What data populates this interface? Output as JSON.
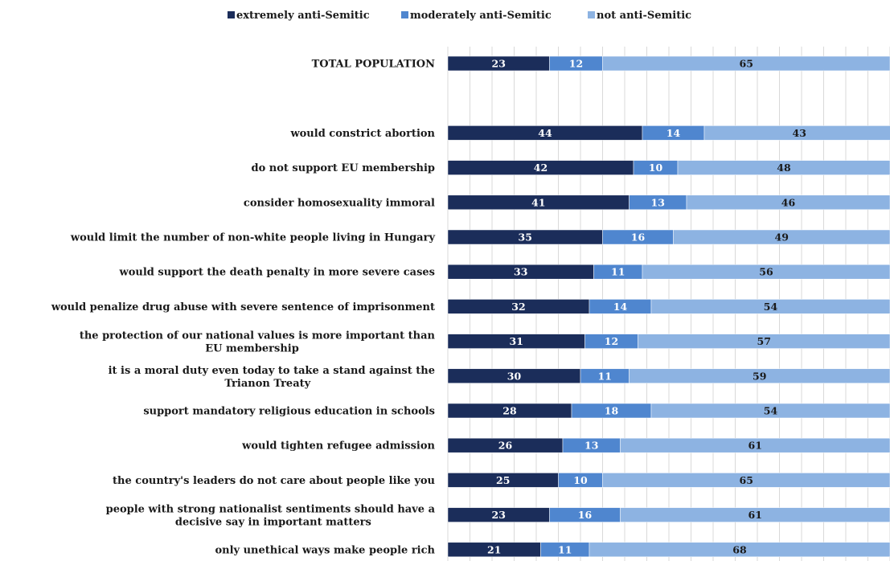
{
  "chart_data": {
    "type": "bar",
    "orientation": "horizontal",
    "stacked": true,
    "percent_scale": true,
    "xlim": [
      0,
      100
    ],
    "grid": true,
    "legend_position": "top",
    "categories": [
      "TOTAL POPULATION",
      "",
      "would constrict abortion",
      "do not support EU membership",
      "consider homosexuality immoral",
      "would limit the number of non-white people living in Hungary",
      "would support the death penalty in more severe cases",
      "would penalize drug abuse with severe sentence of imprisonment",
      "the protection of our national values is more important than EU membership",
      "it is a moral duty even today to take a stand against the Trianon Treaty",
      "support mandatory religious education in schools",
      "would tighten refugee admission",
      "the country's leaders do not care about people like you",
      "people with strong nationalist sentiments should have a decisive say in important matters",
      "only unethical ways make people rich"
    ],
    "series": [
      {
        "name": "extremely anti-Semitic",
        "color": "#1b2d5a",
        "label_color": "#ffffff",
        "values": [
          23,
          null,
          44,
          42,
          41,
          35,
          33,
          32,
          31,
          30,
          28,
          26,
          25,
          23,
          21
        ]
      },
      {
        "name": "moderately anti-Semitic",
        "color": "#4f86cf",
        "label_color": "#ffffff",
        "values": [
          12,
          null,
          14,
          10,
          13,
          16,
          11,
          14,
          12,
          11,
          18,
          13,
          10,
          16,
          11
        ]
      },
      {
        "name": "not anti-Semitic",
        "color": "#8db3e2",
        "label_color": "#1a1a1a",
        "values": [
          65,
          null,
          43,
          48,
          46,
          49,
          56,
          54,
          57,
          59,
          54,
          61,
          65,
          61,
          68
        ]
      }
    ]
  }
}
